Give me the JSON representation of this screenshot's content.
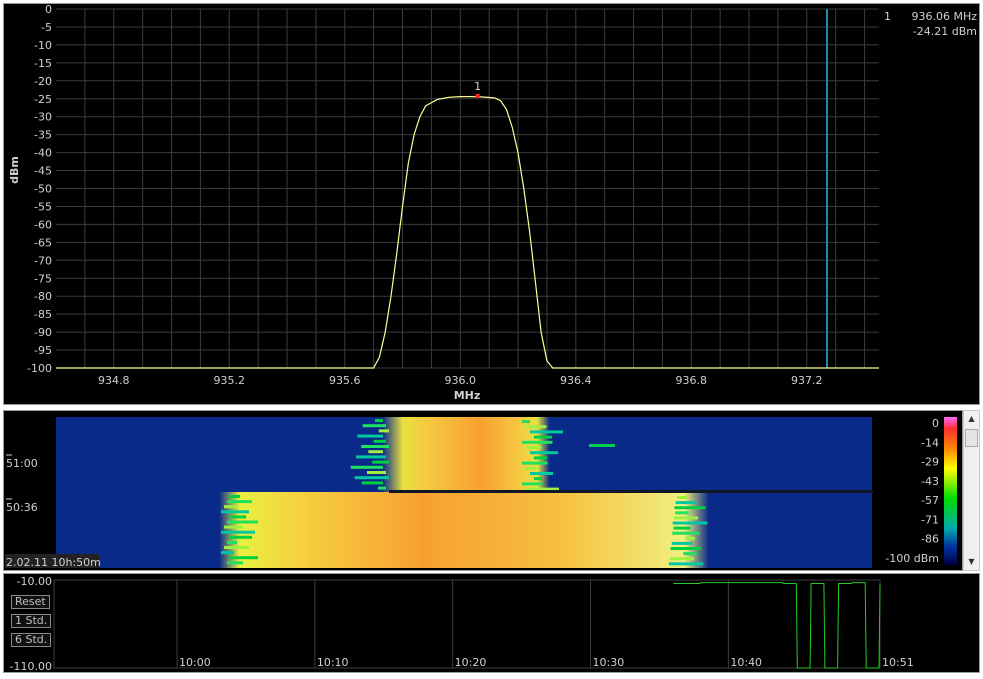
{
  "spectrum": {
    "ylabel": "dBm",
    "xlabel": "MHz",
    "marker_index": "1",
    "marker_freq": "936.06 MHz",
    "marker_level": "-24.21 dBm",
    "colors": {
      "trace": "#ffff99",
      "grid": "#3c3c3c",
      "marker": "#ff2020",
      "line": "#1f8fa8",
      "text": "#d0d0d0"
    }
  },
  "chart_data": [
    {
      "type": "line",
      "xlabel": "MHz",
      "ylabel": "dBm",
      "xlim": [
        934.6,
        937.45
      ],
      "ylim": [
        -100,
        0
      ],
      "grid": true,
      "y_ticks": [
        0,
        -5,
        -10,
        -15,
        -20,
        -25,
        -30,
        -35,
        -40,
        -45,
        -50,
        -55,
        -60,
        -65,
        -70,
        -75,
        -80,
        -85,
        -90,
        -95,
        -100
      ],
      "x_ticks": [
        934.8,
        935.2,
        935.6,
        936.0,
        936.4,
        936.8,
        937.2
      ],
      "x_tick_labels": [
        "934.8",
        "935.2",
        "935.6",
        "936.0",
        "936.4",
        "936.8",
        "937.2"
      ],
      "series": [
        {
          "x": [
            934.6,
            935.7,
            935.72,
            935.74,
            935.76,
            935.78,
            935.8,
            935.82,
            935.84,
            935.86,
            935.88,
            935.92,
            935.96,
            936.0,
            936.04,
            936.08,
            936.12,
            936.14,
            936.16,
            936.18,
            936.2,
            936.22,
            936.24,
            936.26,
            936.28,
            936.3,
            936.32,
            937.45
          ],
          "y": [
            -100,
            -100,
            -97,
            -90,
            -80,
            -68,
            -55,
            -43,
            -35,
            -30,
            -27,
            -25.2,
            -24.6,
            -24.4,
            -24.4,
            -24.5,
            -24.8,
            -25.6,
            -28,
            -33,
            -40,
            -50,
            -62,
            -76,
            -90,
            -98,
            -100,
            -100
          ]
        }
      ],
      "markers": [
        {
          "label": "1",
          "x": 936.06,
          "y": -24.21
        }
      ],
      "vertical_line_x": 937.27
    },
    {
      "type": "heatmap",
      "time_labels": [
        "51:00",
        "50:36"
      ],
      "timestamp": "2.02.11 10h:50m",
      "colorbar_ticks": [
        "0",
        "-14",
        "-29",
        "-43",
        "-57",
        "-71",
        "-86",
        "-100 dBm"
      ]
    },
    {
      "type": "line",
      "ylim": [
        -110,
        -10
      ],
      "y_tick_labels": [
        "-10.00",
        "-110.00"
      ],
      "x_tick_labels": [
        "10:00",
        "10:10",
        "10:20",
        "10:30",
        "10:40",
        "10:51"
      ],
      "series": [
        {
          "x": [
            10.36,
            10.37,
            10.38,
            10.39,
            10.4,
            10.41,
            10.42,
            10.43,
            10.44,
            10.45,
            10.46,
            10.47,
            10.48,
            10.49,
            10.5,
            10.51
          ],
          "y": [
            -14,
            -14,
            -13,
            -13,
            -13,
            -13,
            -13,
            -13,
            -14,
            -110,
            -14,
            -110,
            -14,
            -13,
            -110,
            -15
          ]
        }
      ]
    }
  ],
  "waterfall": {
    "time_label_1": "51:00",
    "time_label_2": "50:36",
    "timestamp": "2.02.11 10h:50m",
    "colorbar": [
      "0",
      "-14",
      "-29",
      "-43",
      "-57",
      "-71",
      "-86",
      "-100 dBm"
    ]
  },
  "history": {
    "ymax_label": "-10.00",
    "ymin_label": "-110.00",
    "buttons": {
      "reset": "Reset",
      "std1": "1 Std.",
      "std6": "6 Std."
    },
    "times": [
      "10:00",
      "10:10",
      "10:20",
      "10:30",
      "10:40",
      "10:51"
    ],
    "trace_color": "#22cc22"
  },
  "scrollbar": {
    "up": "▲",
    "down": "▼"
  }
}
